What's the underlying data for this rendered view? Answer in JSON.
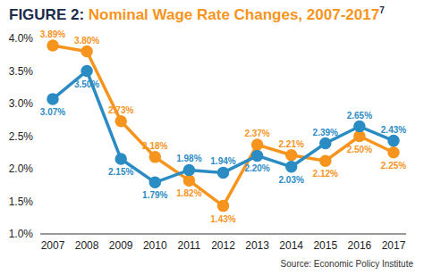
{
  "chart_data": {
    "type": "line",
    "title": "FIGURE 2: Nominal Wage Rate Changes, 2007-2017",
    "title_note": "7",
    "source": "Source: Economic Policy Institute",
    "categories": [
      "2007",
      "2008",
      "2009",
      "2010",
      "2011",
      "2012",
      "2013",
      "2014",
      "2015",
      "2016",
      "2017"
    ],
    "series": [
      {
        "color": "#f7941d",
        "marker": "circle",
        "values": [
          3.89,
          3.8,
          2.73,
          2.18,
          1.82,
          1.43,
          2.37,
          2.21,
          2.12,
          2.5,
          2.25
        ],
        "value_labels": [
          "3.89%",
          "3.80%",
          "2.73%",
          "2.18%",
          "1.82%",
          "1.43%",
          "2.37%",
          "2.21%",
          "2.12%",
          "2.50%",
          "2.25%"
        ]
      },
      {
        "color": "#2b8cc4",
        "marker": "circle",
        "values": [
          3.07,
          3.5,
          2.15,
          1.79,
          1.98,
          1.94,
          2.2,
          2.03,
          2.39,
          2.65,
          2.43
        ],
        "value_labels": [
          "3.07%",
          "3.50%",
          "2.15%",
          "1.79%",
          "1.98%",
          "1.94%",
          "2.20%",
          "2.03%",
          "2.39%",
          "2.65%",
          "2.43%"
        ]
      }
    ],
    "ylim": [
      1.0,
      4.0
    ],
    "yticks": [
      {
        "value": 1.0,
        "label": "1.0%"
      },
      {
        "value": 1.5,
        "label": "1.5%"
      },
      {
        "value": 2.0,
        "label": "2.0%"
      },
      {
        "value": 2.5,
        "label": "2.5%"
      },
      {
        "value": 3.0,
        "label": "3.0%"
      },
      {
        "value": 3.5,
        "label": "3.5%"
      },
      {
        "value": 4.0,
        "label": "4.0%"
      }
    ],
    "grid": false,
    "data_labels": true
  }
}
